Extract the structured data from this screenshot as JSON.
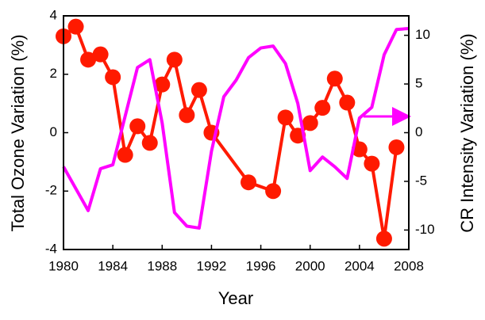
{
  "chart_data": {
    "type": "line",
    "x_label": "Year",
    "y_label": "Total Ozone Variation (%)",
    "y2_label": "CR Intensity Variation (%)",
    "xlim": [
      1980,
      2008
    ],
    "xticks": [
      1980,
      1984,
      1988,
      1992,
      1996,
      2000,
      2004,
      2008
    ],
    "ylim": [
      -4,
      4
    ],
    "yticks": [
      -4,
      -2,
      0,
      2,
      4
    ],
    "y2lim": [
      -12,
      12
    ],
    "y2ticks": [
      -10,
      -5,
      0,
      5,
      10
    ],
    "series": [
      {
        "name": "Total Ozone",
        "color": "#ff1a00",
        "markers": true,
        "x": [
          1980,
          1981,
          1982,
          1983,
          1984,
          1985,
          1986,
          1987,
          1988,
          1989,
          1990,
          1991,
          1992,
          1995,
          1997,
          1998,
          1999,
          2000,
          2001,
          2002,
          2003,
          2004,
          2005,
          2006,
          2007
        ],
        "values": [
          3.3,
          3.63,
          2.5,
          2.68,
          1.9,
          -0.76,
          0.22,
          -0.35,
          1.65,
          2.5,
          0.6,
          1.46,
          0,
          -1.7,
          -2.0,
          0.52,
          -0.1,
          0.33,
          0.85,
          1.85,
          1.03,
          -0.57,
          -1.06,
          -3.63,
          -0.5
        ]
      },
      {
        "name": "CR Intensity",
        "color": "#ff00ff",
        "axis": "y2",
        "markers": false,
        "x": [
          1980,
          1982,
          1983,
          1984,
          1986,
          1987,
          1988,
          1989,
          1990,
          1991,
          1992,
          1993,
          1994,
          1995,
          1996,
          1997,
          1998,
          1999,
          2000,
          2001,
          2002,
          2003,
          2004,
          2005,
          2006,
          2007,
          2008
        ],
        "values": [
          -3.5,
          -8,
          -3.7,
          -3.3,
          6.7,
          7.5,
          1,
          -8.2,
          -9.6,
          -9.8,
          -1.9,
          3.7,
          5.4,
          7.7,
          8.7,
          8.9,
          7.1,
          3.0,
          -3.9,
          -2.5,
          -3.5,
          -4.7,
          1.5,
          2.6,
          8.0,
          10.6,
          10.7
        ]
      }
    ]
  }
}
